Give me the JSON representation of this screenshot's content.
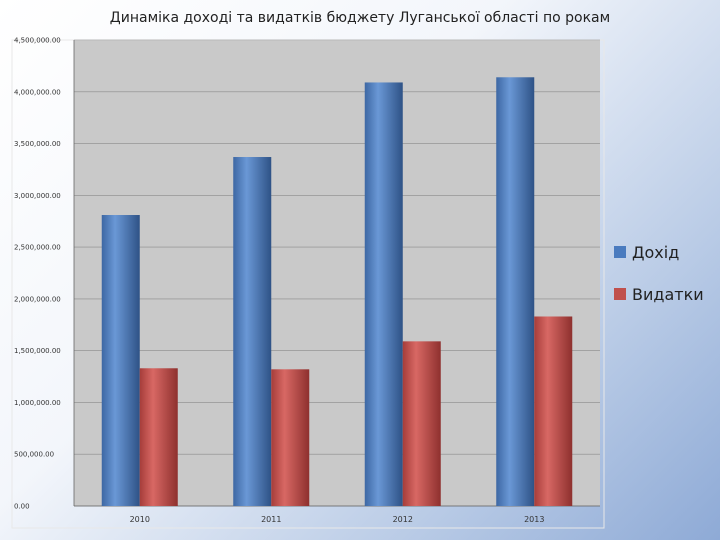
{
  "chart_data": {
    "type": "bar",
    "title": "Динаміка доході та видатків бюджету Луганської області по рокам",
    "categories": [
      "2010",
      "2011",
      "2012",
      "2013"
    ],
    "series": [
      {
        "name": "Дохід",
        "color": "#4a7bbf",
        "values": [
          2810000,
          3370000,
          4090000,
          4140000
        ]
      },
      {
        "name": "Видатки",
        "color": "#c0504d",
        "values": [
          1330000,
          1320000,
          1590000,
          1830000
        ]
      }
    ],
    "yticks": [
      "0.00",
      "500,000.00",
      "1,000,000.00",
      "1,500,000.00",
      "2,000,000.00",
      "2,500,000.00",
      "3,000,000.00",
      "3,500,000.00",
      "4,000,000.00",
      "4,500,000.00"
    ],
    "ylim": [
      0,
      4500000
    ],
    "grid": true,
    "legend": "right"
  }
}
